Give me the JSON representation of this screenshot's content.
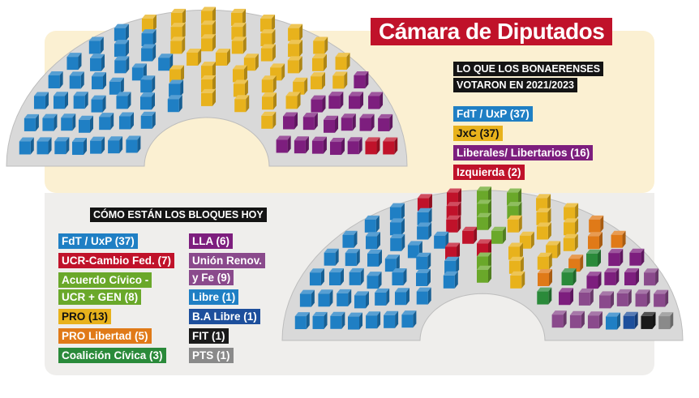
{
  "title": "Cámara de Diputados",
  "chart_data": [
    {
      "type": "parliament",
      "title": "LO QUE LOS BONAERENSES VOTARON EN 2021/2023",
      "title_lines": [
        "LO QUE LOS BONAERENSES",
        "VOTARON EN 2021/2023"
      ],
      "total_seats": 92,
      "series": [
        {
          "name": "FdT / UxP",
          "value": 37,
          "label": "FdT / UxP (37)",
          "color": "#1f7fc4"
        },
        {
          "name": "JxC",
          "value": 37,
          "label": "JxC (37)",
          "color": "#e8b21c",
          "text_color": "#111111"
        },
        {
          "name": "Liberales/ Libertarios",
          "value": 16,
          "label": "Liberales/ Libertarios (16)",
          "color": "#7d1e7e"
        },
        {
          "name": "Izquierda",
          "value": 2,
          "label": "Izquierda (2)",
          "color": "#c0122a"
        }
      ]
    },
    {
      "type": "parliament",
      "title": "CÓMO ESTÁN LOS BLOQUES HOY",
      "total_seats": 92,
      "series": [
        {
          "name": "FdT / UxP",
          "value": 37,
          "label": "FdT / UxP (37)",
          "color": "#1f7fc4"
        },
        {
          "name": "UCR-Cambio Fed.",
          "value": 7,
          "label": "UCR-Cambio Fed. (7)",
          "color": "#c0122a"
        },
        {
          "name": "Acuerdo Cívico - UCR + GEN",
          "value": 8,
          "label": "Acuerdo Cívico - UCR + GEN (8)",
          "label_lines": [
            "Acuerdo Cívico -",
            "UCR + GEN (8)"
          ],
          "color": "#6aa82a"
        },
        {
          "name": "PRO",
          "value": 13,
          "label": "PRO (13)",
          "color": "#e8b21c",
          "text_color": "#111111"
        },
        {
          "name": "PRO Libertad",
          "value": 5,
          "label": "PRO Libertad (5)",
          "color": "#e07a18"
        },
        {
          "name": "Coalición Cívica",
          "value": 3,
          "label": "Coalición Cívica (3)",
          "color": "#2a8a3a"
        },
        {
          "name": "LLA",
          "value": 6,
          "label": "LLA (6)",
          "color": "#7d1e7e"
        },
        {
          "name": "Unión Renov. y Fe",
          "value": 9,
          "label": "Unión Renov. y Fe (9)",
          "label_lines": [
            "Unión Renov.",
            "y Fe (9)"
          ],
          "color": "#8a4a8c"
        },
        {
          "name": "Libre",
          "value": 1,
          "label": "Libre (1)",
          "color": "#1f7fc4"
        },
        {
          "name": "B.A Libre",
          "value": 1,
          "label": "B.A Libre (1)",
          "color": "#1d4f9c"
        },
        {
          "name": "FIT",
          "value": 1,
          "label": "FIT (1)",
          "color": "#1a1a1a"
        },
        {
          "name": "PTS",
          "value": 1,
          "label": "PTS (1)",
          "color": "#8a8a8a"
        }
      ]
    }
  ]
}
